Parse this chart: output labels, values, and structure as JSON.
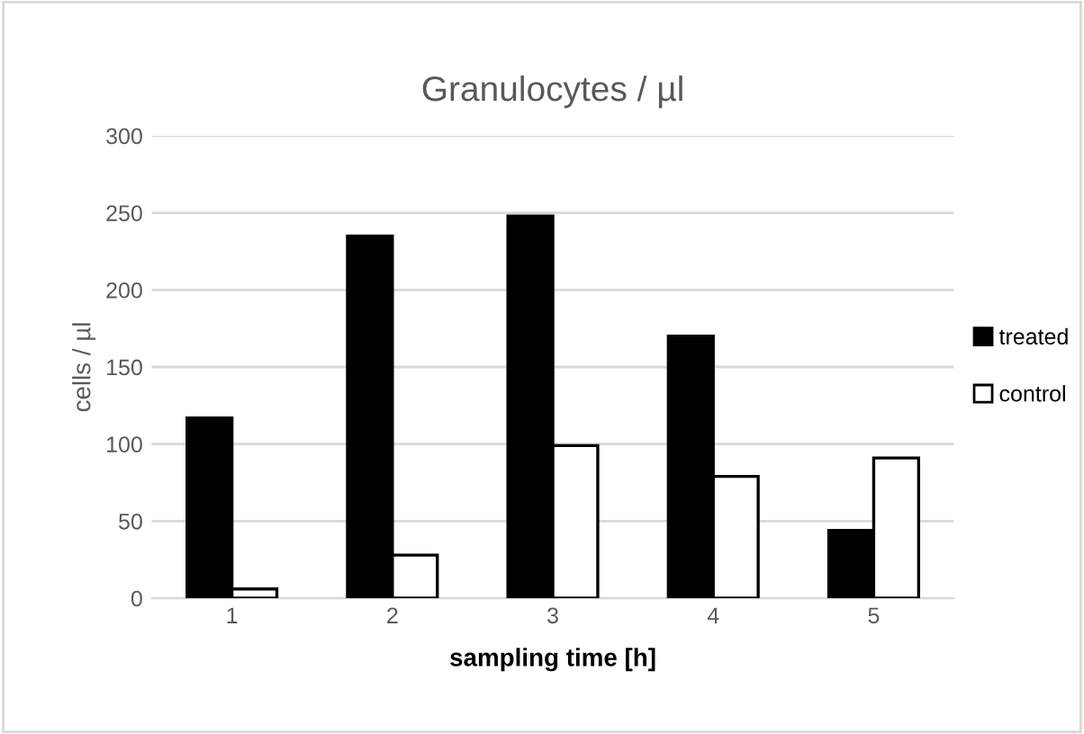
{
  "chart_data": {
    "type": "bar",
    "title": "Granulocytes / µl",
    "xlabel": "sampling time [h]",
    "ylabel": "cells / µl",
    "categories": [
      "1",
      "2",
      "3",
      "4",
      "5"
    ],
    "series": [
      {
        "name": "treated",
        "color": "#000000",
        "values": [
          117,
          235,
          248,
          170,
          44
        ]
      },
      {
        "name": "control",
        "color": "#ffffff",
        "values": [
          6,
          28,
          99,
          79,
          91
        ]
      }
    ],
    "ylim": [
      0,
      300
    ],
    "yticks": [
      0,
      50,
      100,
      150,
      200,
      250,
      300
    ],
    "grid": "y",
    "legend": "right"
  }
}
